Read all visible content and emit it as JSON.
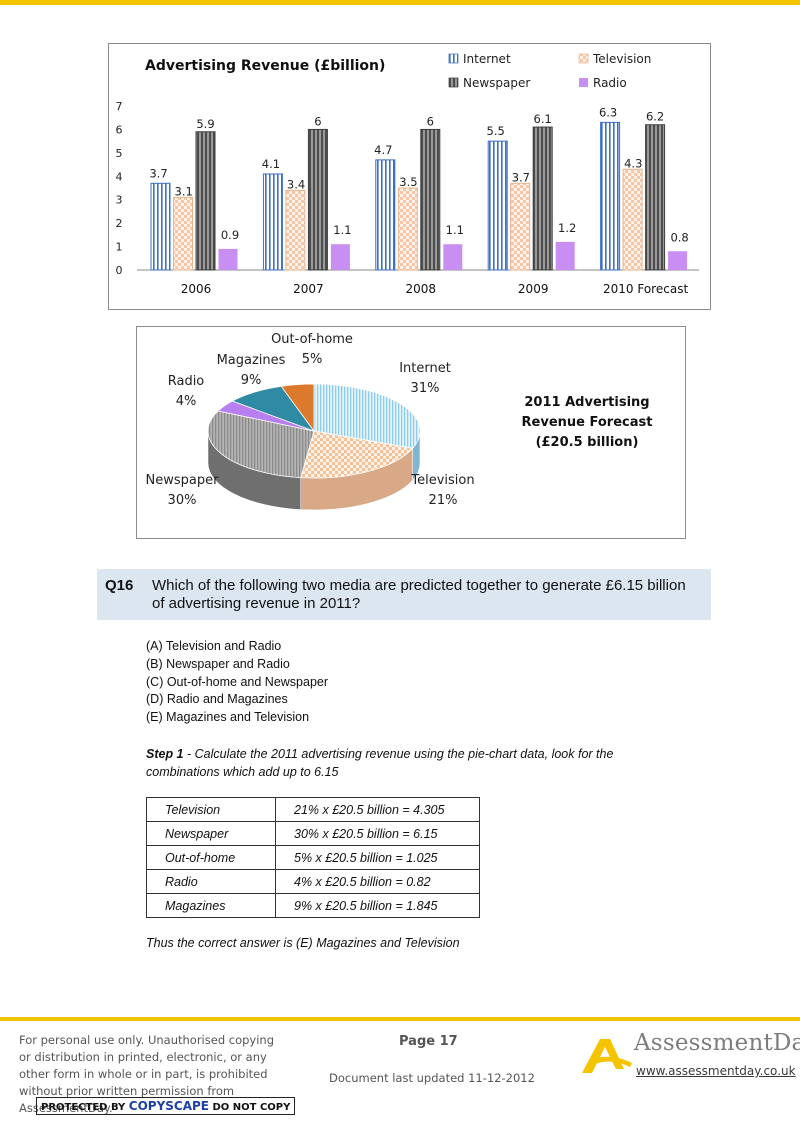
{
  "bar_chart": {
    "chart_data": {
      "type": "bar",
      "title": "Advertising Revenue (£billion)",
      "categories": [
        "2006",
        "2007",
        "2008",
        "2009",
        "2010 Forecast"
      ],
      "series": [
        {
          "name": "Internet",
          "values": [
            3.7,
            4.1,
            4.7,
            5.5,
            6.3
          ],
          "color": "#3b6fc9"
        },
        {
          "name": "Television",
          "values": [
            3.1,
            3.4,
            3.5,
            3.7,
            4.3
          ],
          "color": "#f0a070"
        },
        {
          "name": "Newspaper",
          "values": [
            5.9,
            6,
            6,
            6.1,
            6.2
          ],
          "color": "#4d4d4d"
        },
        {
          "name": "Radio",
          "values": [
            0.9,
            1.1,
            1.1,
            1.2,
            0.8
          ],
          "color": "#c88ef2"
        }
      ],
      "value_labels": [
        [
          "3.7",
          "4.1",
          "4.7",
          "5.5",
          "6.3"
        ],
        [
          "3.1",
          "3.4",
          "3.5",
          "3.7",
          "4.3"
        ],
        [
          "5.9",
          "6",
          "6",
          "6.1",
          "6.2"
        ],
        [
          "0.9",
          "1.1",
          "1.1",
          "1.2",
          "0.8"
        ]
      ],
      "ylim": [
        0,
        7
      ],
      "yticks": [
        "0",
        "1",
        "2",
        "3",
        "4",
        "5",
        "6",
        "7"
      ],
      "legend": "top-right",
      "grid": false
    }
  },
  "pie_chart": {
    "chart_data": {
      "type": "pie",
      "title_lines": [
        "2011 Advertising",
        "Revenue Forecast",
        "(£20.5 billion)"
      ],
      "slices": [
        {
          "name": "Internet",
          "value": 31,
          "label": "31%",
          "color": "#9fd3ef"
        },
        {
          "name": "Television",
          "value": 21,
          "label": "21%",
          "color": "#f6c9a6"
        },
        {
          "name": "Newspaper",
          "value": 30,
          "label": "30%",
          "color": "#a3a3a3"
        },
        {
          "name": "Radio",
          "value": 4,
          "label": "4%",
          "color": "#b77ff0"
        },
        {
          "name": "Magazines",
          "value": 9,
          "label": "9%",
          "color": "#2f8ba3"
        },
        {
          "name": "Out-of-home",
          "value": 5,
          "label": "5%",
          "color": "#db7a2c"
        }
      ]
    }
  },
  "question": {
    "number": "Q16",
    "text": "Which of the following two media are predicted together to generate £6.15 billion of advertising revenue in 2011?"
  },
  "options": [
    "(A) Television and Radio",
    "(B) Newspaper and Radio",
    "(C) Out-of-home and Newspaper",
    "(D) Radio and Magazines",
    "(E) Magazines and Television"
  ],
  "step": {
    "label": "Step 1",
    "text": " - Calculate the 2011 advertising revenue using the pie-chart data, look for the combinations which add up to 6.15"
  },
  "calc_table": [
    [
      "Television",
      "21% x £20.5 billion = 4.305"
    ],
    [
      "Newspaper",
      "30% x £20.5 billion = 6.15"
    ],
    [
      "Out-of-home",
      "5% x £20.5 billion = 1.025"
    ],
    [
      "Radio",
      "4% x £20.5 billion = 0.82"
    ],
    [
      "Magazines",
      "9% x £20.5 billion = 1.845"
    ]
  ],
  "conclusion": "Thus the correct answer is (E) Magazines and Television",
  "footer": {
    "note": "For personal use only. Unauthorised copying or distribution in printed, electronic, or any other form in whole or in part, is prohibited without prior written permission from AssessmentDay.",
    "copyscape_left": "PROTECTED BY ",
    "copyscape_mid": "COPYSCAPE",
    "copyscape_right": " DO NOT COPY",
    "page": "Page 17",
    "updated": "Document last updated 11-12-2012",
    "logo_text": "AssessmentDay",
    "url": "www.assessmentday.co.uk"
  }
}
